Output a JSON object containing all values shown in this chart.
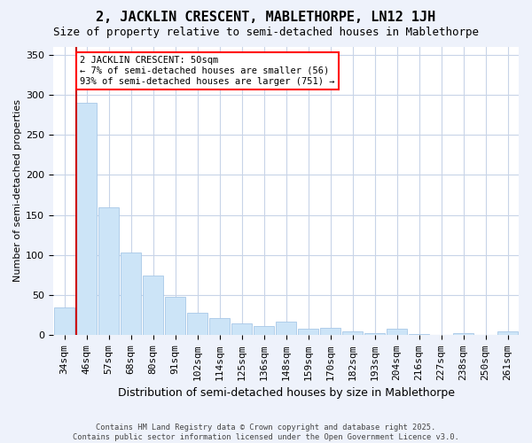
{
  "title": "2, JACKLIN CRESCENT, MABLETHORPE, LN12 1JH",
  "subtitle": "Size of property relative to semi-detached houses in Mablethorpe",
  "xlabel": "Distribution of semi-detached houses by size in Mablethorpe",
  "ylabel": "Number of semi-detached properties",
  "categories": [
    "34sqm",
    "46sqm",
    "57sqm",
    "68sqm",
    "80sqm",
    "91sqm",
    "102sqm",
    "114sqm",
    "125sqm",
    "136sqm",
    "148sqm",
    "159sqm",
    "170sqm",
    "182sqm",
    "193sqm",
    "204sqm",
    "216sqm",
    "227sqm",
    "238sqm",
    "250sqm",
    "261sqm"
  ],
  "values": [
    35,
    290,
    160,
    103,
    75,
    48,
    28,
    22,
    15,
    12,
    17,
    8,
    9,
    5,
    3,
    8,
    2,
    1,
    3,
    1,
    5
  ],
  "bar_color": "#cce4f7",
  "bar_edge_color": "#a8c8e8",
  "ylim": [
    0,
    360
  ],
  "yticks": [
    0,
    50,
    100,
    150,
    200,
    250,
    300,
    350
  ],
  "property_bin_index": 1,
  "property_label": "2 JACKLIN CRESCENT: 50sqm",
  "annotation_line1": "← 7% of semi-detached houses are smaller (56)",
  "annotation_line2": "93% of semi-detached houses are larger (751) →",
  "vline_color": "#cc0000",
  "footer1": "Contains HM Land Registry data © Crown copyright and database right 2025.",
  "footer2": "Contains public sector information licensed under the Open Government Licence v3.0.",
  "background_color": "#eef2fb",
  "plot_bg_color": "#ffffff",
  "grid_color": "#c8d4e8",
  "title_fontsize": 11,
  "subtitle_fontsize": 9,
  "ylabel_fontsize": 8,
  "xlabel_fontsize": 9,
  "tick_fontsize": 8,
  "annot_fontsize": 7.5
}
